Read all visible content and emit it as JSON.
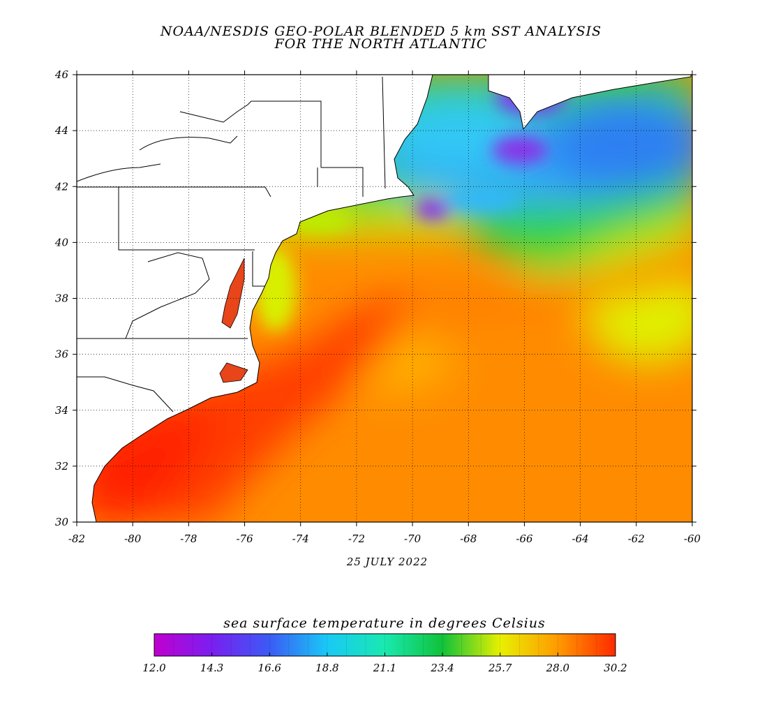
{
  "header": {
    "title_line1": "NOAA/NESDIS GEO-POLAR BLENDED 5 km SST ANALYSIS",
    "title_line2": "FOR THE NORTH ATLANTIC"
  },
  "map": {
    "lon_range": [
      -82,
      -60
    ],
    "lat_range": [
      30,
      46
    ],
    "lon_tick_labels": [
      "-82",
      "-80",
      "-78",
      "-76",
      "-74",
      "-72",
      "-70",
      "-68",
      "-66",
      "-64",
      "-62",
      "-60"
    ],
    "lat_tick_labels": [
      "46",
      "44",
      "42",
      "40",
      "38",
      "36",
      "34",
      "32",
      "30"
    ],
    "grid": "dotted",
    "date_label": "25 JULY 2022"
  },
  "colorbar": {
    "title": "sea surface temperature in degrees Celsius",
    "tick_labels": [
      "12.0",
      "14.3",
      "16.6",
      "18.8",
      "21.1",
      "23.4",
      "25.7",
      "28.0",
      "30.2"
    ],
    "range": [
      12.0,
      30.2
    ],
    "colors": [
      "#c000d0",
      "#7a1ff0",
      "#3b5bf5",
      "#19c9f6",
      "#19e9b0",
      "#10c23a",
      "#e8f000",
      "#ff9a00",
      "#ff2a00"
    ]
  }
}
